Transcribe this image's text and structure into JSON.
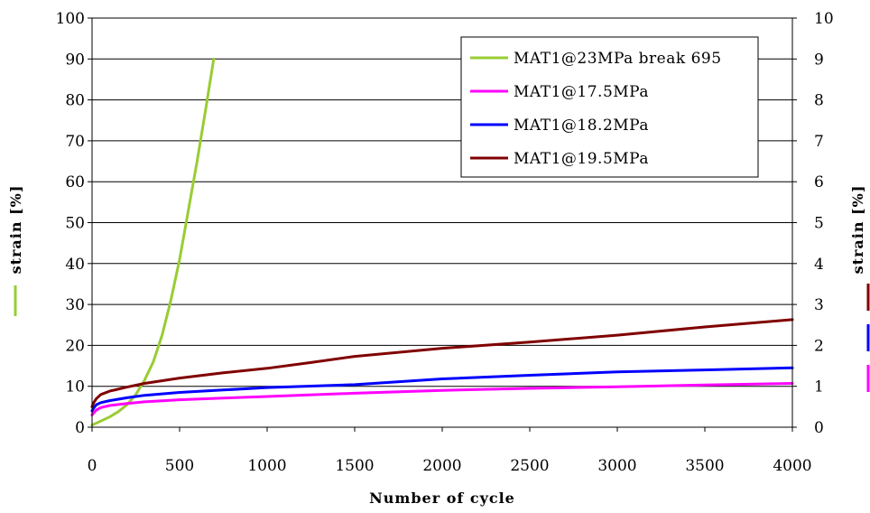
{
  "chart_data": {
    "type": "line",
    "xlabel": "Number of cycle",
    "ylabel_left": "strain [%]",
    "ylabel_right": "strain [%]",
    "xlim": [
      0,
      4000
    ],
    "ylim_left": [
      0,
      100
    ],
    "ylim_right": [
      0,
      10
    ],
    "x_ticks": [
      "0",
      "500",
      "1000",
      "1500",
      "2000",
      "2500",
      "3000",
      "3500",
      "4000"
    ],
    "y_ticks_left": [
      "0",
      "10",
      "20",
      "30",
      "40",
      "50",
      "60",
      "70",
      "80",
      "90",
      "100"
    ],
    "y_ticks_right": [
      "0",
      "1",
      "2",
      "3",
      "4",
      "5",
      "6",
      "7",
      "8",
      "9",
      "10"
    ],
    "grid": true,
    "legend_position": "top-right",
    "left_axis_marker_color": "#99cc33",
    "right_axis_marker_colors": [
      "#800000",
      "#0000ff",
      "#ff00ff"
    ],
    "series": [
      {
        "name": "MAT1@23MPa break 695",
        "axis": "left",
        "color": "#99cc33",
        "x": [
          0,
          50,
          100,
          150,
          200,
          250,
          300,
          350,
          400,
          450,
          500,
          550,
          600,
          650,
          695
        ],
        "y": [
          0.5,
          1.5,
          2.5,
          3.8,
          5.5,
          8,
          11.5,
          16,
          22.5,
          31,
          41,
          53,
          65,
          78,
          90
        ]
      },
      {
        "name": "MAT1@17.5MPa",
        "axis": "right",
        "color": "#ff00ff",
        "x": [
          0,
          10,
          25,
          50,
          100,
          200,
          300,
          500,
          750,
          1000,
          1500,
          2000,
          2500,
          3000,
          3500,
          4000
        ],
        "y": [
          0.3,
          0.35,
          0.42,
          0.48,
          0.53,
          0.58,
          0.62,
          0.67,
          0.71,
          0.75,
          0.83,
          0.9,
          0.95,
          0.99,
          1.03,
          1.07
        ]
      },
      {
        "name": "MAT1@18.2MPa",
        "axis": "right",
        "color": "#0000ff",
        "x": [
          0,
          10,
          25,
          50,
          100,
          200,
          300,
          500,
          750,
          1000,
          1500,
          2000,
          2500,
          3000,
          3500,
          4000
        ],
        "y": [
          0.4,
          0.47,
          0.55,
          0.6,
          0.65,
          0.72,
          0.78,
          0.85,
          0.91,
          0.97,
          1.04,
          1.18,
          1.27,
          1.35,
          1.4,
          1.45
        ]
      },
      {
        "name": "MAT1@19.5MPa",
        "axis": "right",
        "color": "#800000",
        "x": [
          0,
          10,
          25,
          50,
          100,
          200,
          300,
          500,
          750,
          1000,
          1250,
          1500,
          2000,
          2500,
          3000,
          3500,
          4000
        ],
        "y": [
          0.5,
          0.6,
          0.7,
          0.8,
          0.88,
          0.98,
          1.07,
          1.2,
          1.33,
          1.44,
          1.58,
          1.73,
          1.93,
          2.08,
          2.25,
          2.45,
          2.63
        ]
      }
    ]
  }
}
